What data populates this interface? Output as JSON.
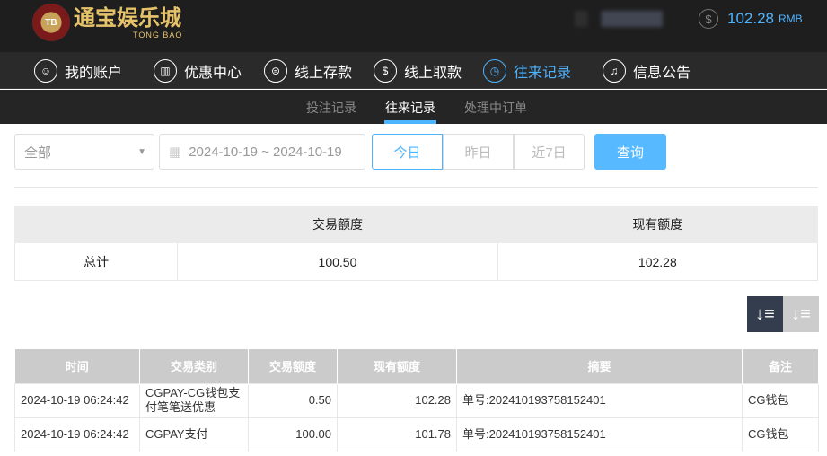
{
  "header": {
    "logo_text": "通宝娱乐城",
    "logo_sub": "TONG BAO",
    "logo_chip": "TB",
    "balance": "102.28",
    "currency": "RMB"
  },
  "nav": [
    {
      "label": "我的账户",
      "icon": "user-icon"
    },
    {
      "label": "优惠中心",
      "icon": "gift-icon"
    },
    {
      "label": "线上存款",
      "icon": "deposit-icon"
    },
    {
      "label": "线上取款",
      "icon": "withdraw-icon"
    },
    {
      "label": "往来记录",
      "icon": "record-icon",
      "active": true
    },
    {
      "label": "信息公告",
      "icon": "bell-icon"
    }
  ],
  "subnav": [
    "投注记录",
    "往来记录",
    "处理中订单"
  ],
  "filter": {
    "type": "全部",
    "date_range": "2024-10-19 ~ 2024-10-19",
    "today": "今日",
    "yesterday": "昨日",
    "last7": "近7日",
    "query": "查询"
  },
  "summary": {
    "headers": [
      "",
      "交易额度",
      "现有额度"
    ],
    "row": [
      "总计",
      "100.50",
      "102.28"
    ]
  },
  "table": {
    "headers": [
      "时间",
      "交易类别",
      "交易额度",
      "现有额度",
      "摘要",
      "备注"
    ],
    "rows": [
      [
        "2024-10-19 06:24:42",
        "CGPAY-CG钱包支付笔笔送优惠",
        "0.50",
        "102.28",
        "单号:202410193758152401",
        "CG钱包"
      ],
      [
        "2024-10-19 06:24:42",
        "CGPAY支付",
        "100.00",
        "101.78",
        "单号:202410193758152401",
        "CG钱包"
      ]
    ]
  },
  "colors": {
    "accent": "#4db3ff",
    "header_bg": "#1e1e1e"
  }
}
